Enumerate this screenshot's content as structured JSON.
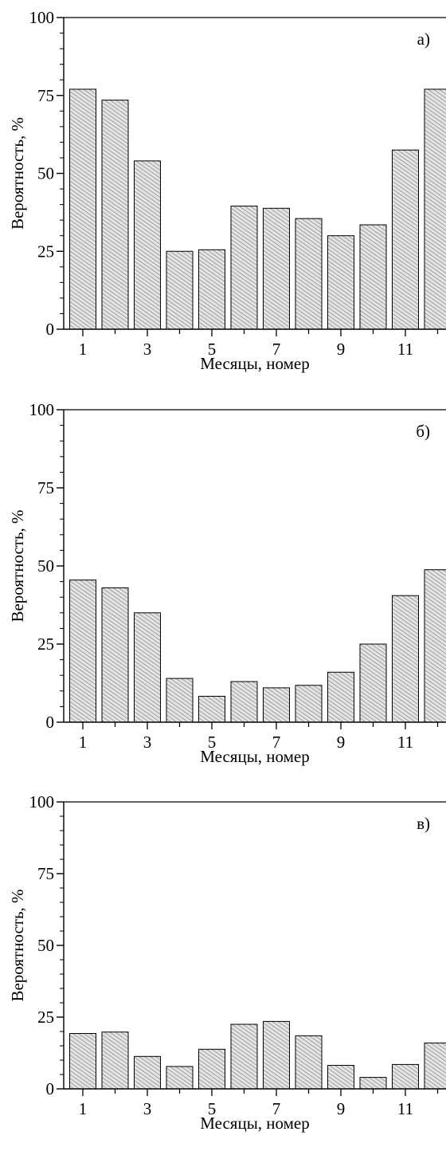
{
  "chart_data": [
    {
      "type": "bar",
      "panel_label": "а)",
      "categories": [
        1,
        2,
        3,
        4,
        5,
        6,
        7,
        8,
        9,
        10,
        11,
        12
      ],
      "x_tick_labels": [
        "1",
        "3",
        "5",
        "7",
        "9",
        "11"
      ],
      "values": [
        77,
        73.5,
        54,
        25,
        25.5,
        39.5,
        38.8,
        35.5,
        30,
        33.5,
        57.5,
        77
      ],
      "xlabel": "Месяцы, номер",
      "ylabel": "Вероятность, %",
      "ylim": [
        0,
        100
      ],
      "y_ticks": [
        0,
        25,
        50,
        75,
        100
      ],
      "bar_fill": "hatched",
      "grid": false
    },
    {
      "type": "bar",
      "panel_label": "б)",
      "categories": [
        1,
        2,
        3,
        4,
        5,
        6,
        7,
        8,
        9,
        10,
        11,
        12
      ],
      "x_tick_labels": [
        "1",
        "3",
        "5",
        "7",
        "9",
        "11"
      ],
      "values": [
        45.5,
        43,
        35,
        14,
        8.3,
        13,
        11,
        11.8,
        16,
        25,
        40.5,
        48.8
      ],
      "xlabel": "Месяцы, номер",
      "ylabel": "Вероятность, %",
      "ylim": [
        0,
        100
      ],
      "y_ticks": [
        0,
        25,
        50,
        75,
        100
      ],
      "bar_fill": "hatched",
      "grid": false
    },
    {
      "type": "bar",
      "panel_label": "в)",
      "categories": [
        1,
        2,
        3,
        4,
        5,
        6,
        7,
        8,
        9,
        10,
        11,
        12
      ],
      "x_tick_labels": [
        "1",
        "3",
        "5",
        "7",
        "9",
        "11"
      ],
      "values": [
        19.3,
        19.8,
        11.3,
        7.8,
        13.8,
        22.5,
        23.5,
        18.5,
        8.2,
        4,
        8.5,
        16
      ],
      "xlabel": "Месяцы, номер",
      "ylabel": "Вероятность, %",
      "ylim": [
        0,
        100
      ],
      "y_ticks": [
        0,
        25,
        50,
        75,
        100
      ],
      "bar_fill": "hatched",
      "grid": false
    }
  ]
}
